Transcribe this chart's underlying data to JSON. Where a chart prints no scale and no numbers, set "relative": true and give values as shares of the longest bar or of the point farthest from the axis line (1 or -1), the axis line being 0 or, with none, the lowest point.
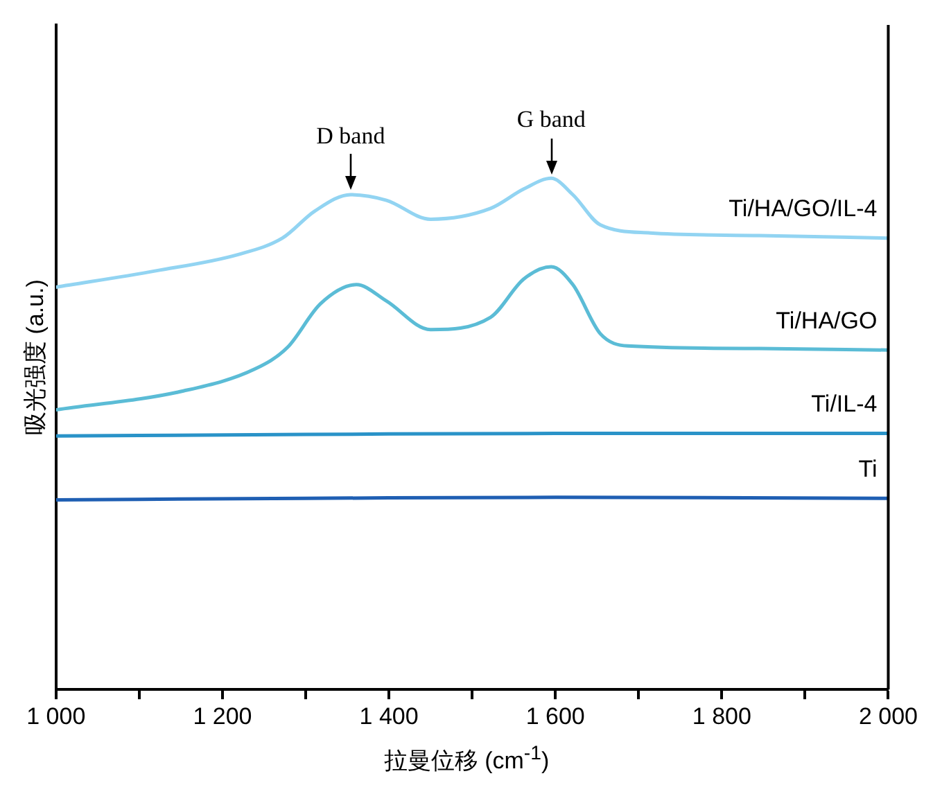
{
  "chart_data": {
    "type": "line",
    "xlabel": "拉曼位移 (cm$^{-1}$)",
    "ylabel": "吸光强度 (a.u.)",
    "relative": true,
    "grid": false,
    "legend": false,
    "marker": "none",
    "line_style": "solid",
    "xlim": [
      1000,
      2000
    ],
    "xticks": [
      {
        "value": 1000,
        "label": "1 000"
      },
      {
        "value": 1100,
        "label": null
      },
      {
        "value": 1200,
        "label": "1 200"
      },
      {
        "value": 1300,
        "label": null
      },
      {
        "value": 1400,
        "label": "1 400"
      },
      {
        "value": 1500,
        "label": null
      },
      {
        "value": 1600,
        "label": "1 600"
      },
      {
        "value": 1700,
        "label": null
      },
      {
        "value": 1800,
        "label": "1 800"
      },
      {
        "value": 1900,
        "label": null
      },
      {
        "value": 2000,
        "label": "2 000"
      }
    ],
    "annotations": [
      {
        "text": "D band",
        "x": 1354,
        "y": 0.968
      },
      {
        "text": "G band",
        "x": 1595,
        "y": 1.0
      }
    ],
    "series": [
      {
        "name": "Ti/HA/GO/IL-4",
        "color": "#92d4f2",
        "x": [
          1000,
          1120,
          1219,
          1272,
          1311,
          1354,
          1397,
          1450,
          1522,
          1562,
          1595,
          1621,
          1654,
          1714,
          1845,
          2000
        ],
        "values": [
          0.787,
          0.819,
          0.851,
          0.883,
          0.936,
          0.968,
          0.957,
          0.92,
          0.941,
          0.979,
          1.0,
          0.968,
          0.909,
          0.893,
          0.888,
          0.883
        ]
      },
      {
        "name": "Ti/HA/GO",
        "color": "#5bbcd6",
        "x": [
          1000,
          1153,
          1239,
          1278,
          1318,
          1361,
          1397,
          1450,
          1522,
          1562,
          1595,
          1621,
          1654,
          1687,
          1845,
          2000
        ],
        "values": [
          0.547,
          0.584,
          0.627,
          0.669,
          0.755,
          0.792,
          0.76,
          0.704,
          0.728,
          0.803,
          0.827,
          0.792,
          0.696,
          0.672,
          0.667,
          0.664
        ]
      },
      {
        "name": "Ti/IL-4",
        "color": "#2a93c8",
        "x": [
          1000,
          1300,
          1600,
          2000
        ],
        "values": [
          0.496,
          0.499,
          0.501,
          0.501
        ]
      },
      {
        "name": "Ti",
        "color": "#1f5fb3",
        "x": [
          1000,
          1300,
          1600,
          2000
        ],
        "values": [
          0.371,
          0.374,
          0.376,
          0.374
        ]
      }
    ]
  }
}
